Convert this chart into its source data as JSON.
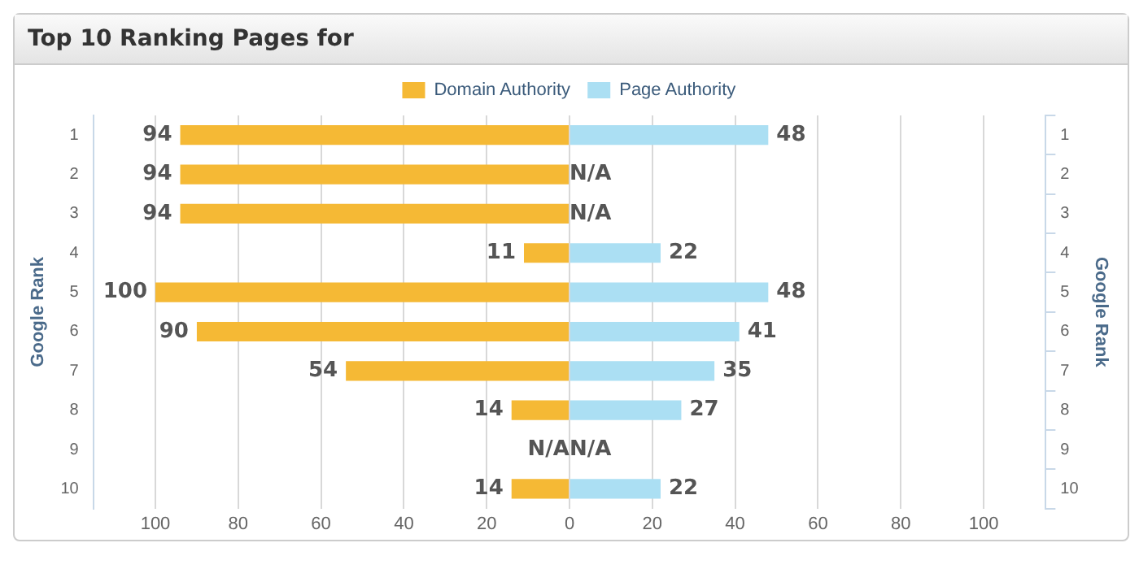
{
  "chart_data": {
    "type": "bar",
    "orientation": "horizontal",
    "title": "Top 10 Ranking Pages for",
    "ylabel": "Google Rank",
    "y2label": "Google Rank",
    "categories": [
      "1",
      "2",
      "3",
      "4",
      "5",
      "6",
      "7",
      "8",
      "9",
      "10"
    ],
    "y2_categories": [
      "1",
      "2",
      "3",
      "4",
      "5",
      "6",
      "7",
      "8",
      "9",
      "10"
    ],
    "series": [
      {
        "name": "Domain Authority",
        "color": "#f5b935",
        "values": [
          94,
          94,
          94,
          11,
          100,
          90,
          54,
          14,
          null,
          14
        ],
        "base": [
          -94,
          -94,
          -94,
          -11,
          -100,
          -90,
          -54,
          -14,
          null,
          -14
        ],
        "value_labels": [
          "94",
          "94",
          "94",
          "11",
          "100",
          "90",
          "54",
          "14",
          "N/A",
          "14"
        ]
      },
      {
        "name": "Page Authority",
        "color": "#abdff3",
        "values": [
          48,
          null,
          null,
          22,
          48,
          41,
          35,
          27,
          null,
          22
        ],
        "value_labels": [
          "48",
          "N/A",
          "N/A",
          "22",
          "48",
          "41",
          "35",
          "27",
          "N/A",
          "22"
        ]
      }
    ],
    "xlim": [
      -115,
      115
    ],
    "xticks": [
      {
        "value": -100,
        "label": "100"
      },
      {
        "value": -80,
        "label": "80"
      },
      {
        "value": -60,
        "label": "60"
      },
      {
        "value": -40,
        "label": "40"
      },
      {
        "value": -20,
        "label": "20"
      },
      0,
      20,
      40,
      60,
      80,
      100
    ],
    "grid": "x",
    "legend": "top"
  }
}
